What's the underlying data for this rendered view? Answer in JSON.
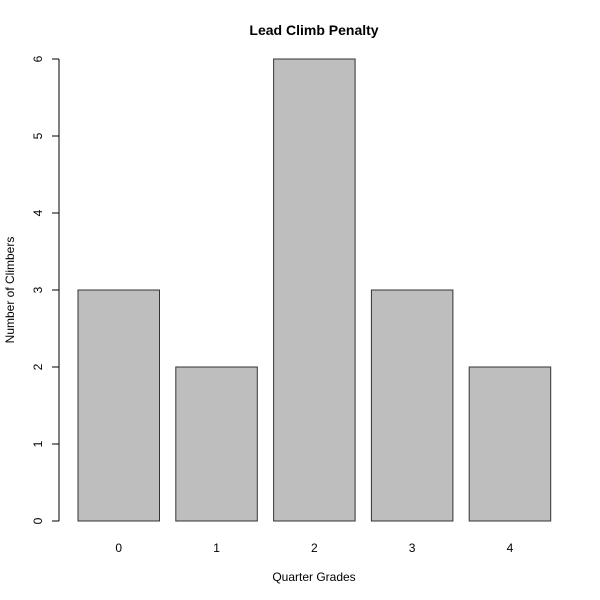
{
  "chart_data": {
    "type": "bar",
    "title": "Lead Climb Penalty",
    "x_label": "Quarter Grades",
    "y_label": "Number of Climbers",
    "categories": [
      "0",
      "1",
      "2",
      "3",
      "4"
    ],
    "values": [
      3,
      2,
      6,
      3,
      2
    ],
    "color": "#bebebe",
    "ylim": [
      0,
      6
    ],
    "yticks": [
      0,
      1,
      2,
      3,
      4,
      5,
      6
    ]
  }
}
